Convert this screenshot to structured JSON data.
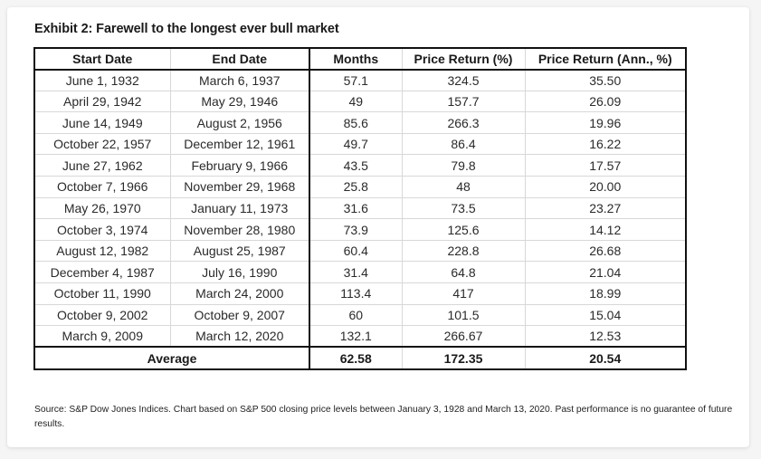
{
  "exhibit": {
    "title": "Exhibit 2: Farewell to the longest ever bull market",
    "source": "Source:  S&P Dow Jones Indices.  Chart based on S&P 500 closing price levels between January 3, 1928 and March 13, 2020.  Past performance is no guarantee of future results."
  },
  "table": {
    "headers": [
      "Start Date",
      "End Date",
      "Months",
      "Price Return (%)",
      "Price Return (Ann., %)"
    ],
    "rows": [
      [
        "June 1, 1932",
        "March 6, 1937",
        "57.1",
        "324.5",
        "35.50"
      ],
      [
        "April 29, 1942",
        "May 29, 1946",
        "49",
        "157.7",
        "26.09"
      ],
      [
        "June 14, 1949",
        "August 2, 1956",
        "85.6",
        "266.3",
        "19.96"
      ],
      [
        "October 22, 1957",
        "December 12, 1961",
        "49.7",
        "86.4",
        "16.22"
      ],
      [
        "June 27, 1962",
        "February 9, 1966",
        "43.5",
        "79.8",
        "17.57"
      ],
      [
        "October 7, 1966",
        "November 29, 1968",
        "25.8",
        "48",
        "20.00"
      ],
      [
        "May 26, 1970",
        "January 11, 1973",
        "31.6",
        "73.5",
        "23.27"
      ],
      [
        "October 3, 1974",
        "November 28, 1980",
        "73.9",
        "125.6",
        "14.12"
      ],
      [
        "August 12, 1982",
        "August 25, 1987",
        "60.4",
        "228.8",
        "26.68"
      ],
      [
        "December 4, 1987",
        "July 16, 1990",
        "31.4",
        "64.8",
        "21.04"
      ],
      [
        "October 11, 1990",
        "March 24, 2000",
        "113.4",
        "417",
        "18.99"
      ],
      [
        "October 9, 2002",
        "October 9, 2007",
        "60",
        "101.5",
        "15.04"
      ],
      [
        "March 9, 2009",
        "March 12, 2020",
        "132.1",
        "266.67",
        "12.53"
      ]
    ],
    "average": {
      "label": "Average",
      "months": "62.58",
      "price_return": "172.35",
      "price_return_ann": "20.54"
    }
  }
}
